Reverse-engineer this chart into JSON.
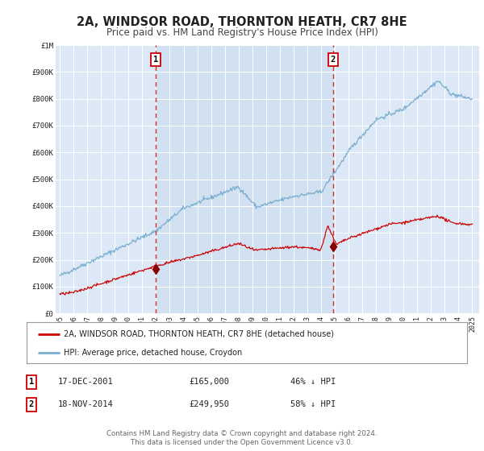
{
  "title": "2A, WINDSOR ROAD, THORNTON HEATH, CR7 8HE",
  "subtitle": "Price paid vs. HM Land Registry's House Price Index (HPI)",
  "title_fontsize": 10.5,
  "subtitle_fontsize": 8.5,
  "background_color": "#ffffff",
  "plot_bg_color": "#dce8f5",
  "grid_color": "#c8d8e8",
  "red_line_color": "#cc0000",
  "blue_line_color": "#7aadcf",
  "marker_color": "#880000",
  "dashed_line_color": "#cc3333",
  "annotation_box_color": "#cc0000",
  "ylim": [
    0,
    1000000
  ],
  "yticks": [
    0,
    100000,
    200000,
    300000,
    400000,
    500000,
    600000,
    700000,
    800000,
    900000,
    1000000
  ],
  "ytick_labels": [
    "£0",
    "£100K",
    "£200K",
    "£300K",
    "£400K",
    "£500K",
    "£600K",
    "£700K",
    "£800K",
    "£900K",
    "£1M"
  ],
  "xlim_start": 1994.7,
  "xlim_end": 2025.5,
  "xticks": [
    1995,
    1996,
    1997,
    1998,
    1999,
    2000,
    2001,
    2002,
    2003,
    2004,
    2005,
    2006,
    2007,
    2008,
    2009,
    2010,
    2011,
    2012,
    2013,
    2014,
    2015,
    2016,
    2017,
    2018,
    2019,
    2020,
    2021,
    2022,
    2023,
    2024,
    2025
  ],
  "marker1_x": 2001.96,
  "marker1_y": 165000,
  "marker1_label": "1",
  "marker1_date": "17-DEC-2001",
  "marker1_price": "£165,000",
  "marker1_hpi": "46% ↓ HPI",
  "marker2_x": 2014.88,
  "marker2_y": 249950,
  "marker2_label": "2",
  "marker2_date": "18-NOV-2014",
  "marker2_price": "£249,950",
  "marker2_hpi": "58% ↓ HPI",
  "legend_label_red": "2A, WINDSOR ROAD, THORNTON HEATH, CR7 8HE (detached house)",
  "legend_label_blue": "HPI: Average price, detached house, Croydon",
  "footer_text": "Contains HM Land Registry data © Crown copyright and database right 2024.\nThis data is licensed under the Open Government Licence v3.0.",
  "footer_fontsize": 6.2
}
